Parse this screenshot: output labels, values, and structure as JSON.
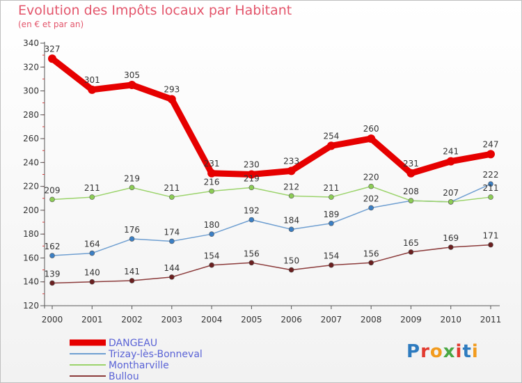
{
  "header": {
    "title": "Evolution des Impôts locaux par Habitant",
    "subtitle": "(en € et par an)"
  },
  "logo": {
    "letters": [
      "P",
      "r",
      "o",
      "x",
      "i",
      "t",
      "i"
    ],
    "colors": [
      "#2e7bbf",
      "#e23a2f",
      "#f29b1d",
      "#4aa844",
      "#e23a2f",
      "#2e7bbf",
      "#f29b1d"
    ]
  },
  "chart_data": {
    "type": "line",
    "title": "Evolution des Impôts locaux par Habitant",
    "subtitle": "(en € et par an)",
    "xlabel": "",
    "ylabel": "",
    "categories": [
      "2000",
      "2001",
      "2002",
      "2003",
      "2004",
      "2005",
      "2006",
      "2007",
      "2008",
      "2009",
      "2010",
      "2011"
    ],
    "ylim": [
      120,
      340
    ],
    "yticks": [
      120,
      140,
      160,
      180,
      200,
      220,
      240,
      260,
      280,
      300,
      320,
      340
    ],
    "grid": false,
    "legend_position": "bottom-left",
    "series": [
      {
        "name": "DANGEAU",
        "color": "#e60000",
        "point_color": "#e60000",
        "label_color": "#333333",
        "values": [
          327,
          301,
          305,
          293,
          231,
          230,
          233,
          254,
          260,
          231,
          241,
          247
        ],
        "labels": [
          "327",
          "301",
          "305",
          "293",
          "231",
          "230",
          "233",
          "254",
          "260",
          "231",
          "241",
          "247"
        ]
      },
      {
        "name": "Trizay-lès-Bonneval",
        "color": "#6f9fd1",
        "point_color": "#3b7fc4",
        "label_color": "#333333",
        "values": [
          162,
          164,
          176,
          174,
          180,
          192,
          184,
          189,
          202,
          208,
          207,
          222
        ],
        "labels": [
          "162",
          "164",
          "176",
          "174",
          "180",
          "192",
          "184",
          "189",
          "202",
          "208",
          "207",
          "222"
        ]
      },
      {
        "name": "Montharville",
        "color": "#9bd36b",
        "point_color": "#8ccc55",
        "label_color": "#333333",
        "values": [
          209,
          211,
          219,
          211,
          216,
          219,
          212,
          211,
          220,
          208,
          207,
          211
        ],
        "labels": [
          "209",
          "211",
          "219",
          "211",
          "216",
          "219",
          "212",
          "211",
          "220",
          "",
          "",
          "211"
        ]
      },
      {
        "name": "Bullou",
        "color": "#8b3a3a",
        "point_color": "#6a1f1f",
        "label_color": "#333333",
        "values": [
          139,
          140,
          141,
          144,
          154,
          156,
          150,
          154,
          156,
          165,
          169,
          171
        ],
        "labels": [
          "139",
          "140",
          "141",
          "144",
          "154",
          "156",
          "150",
          "154",
          "156",
          "165",
          "169",
          "171"
        ]
      }
    ]
  }
}
